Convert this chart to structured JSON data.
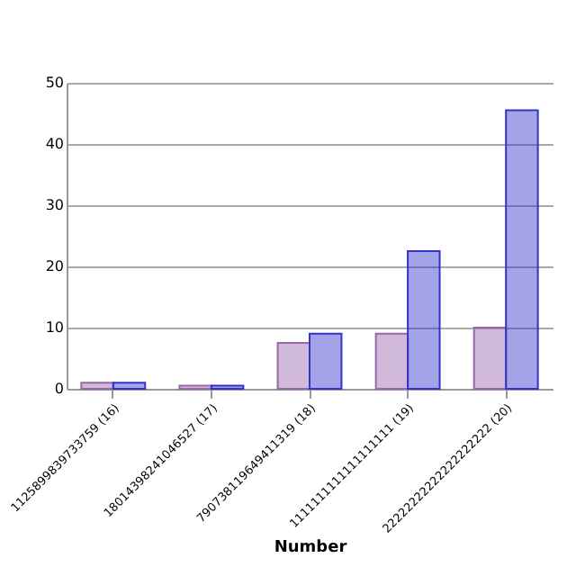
{
  "chart_data": {
    "type": "bar",
    "xlabel": "Number",
    "categories": [
      "1125899839733759 (16)",
      "18014398241046527 (17)",
      "790738119649411319 (18)",
      "1111111111111111111 (19)",
      "22222222222222222222 (20)"
    ],
    "series": [
      {
        "color": "#9966aa",
        "values": [
          1,
          0.5,
          7.5,
          9,
          10
        ]
      },
      {
        "color": "#3333cc",
        "values": [
          1,
          0.5,
          9,
          22.5,
          45.5
        ]
      }
    ],
    "ylim": [
      0,
      50
    ],
    "yticks": [
      0,
      10,
      20,
      30,
      40,
      50
    ],
    "grid": "y",
    "legend": false
  }
}
